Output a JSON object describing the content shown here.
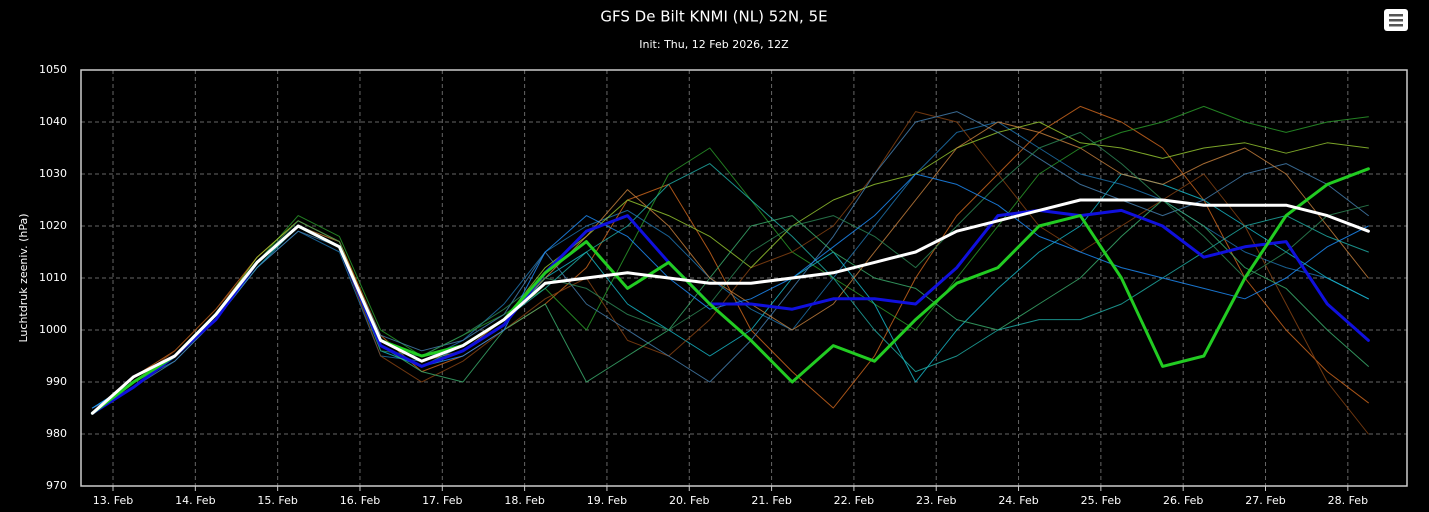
{
  "chart_data": {
    "type": "line",
    "title": "GFS De Bilt KNMI (NL) 52N, 5E",
    "subtitle": "Init: Thu, 12 Feb 2026, 12Z",
    "y_label": "Luchtdruk zeeniv. (hPa)",
    "grid": true,
    "ylim": [
      970,
      1050
    ],
    "yticks": [
      970,
      980,
      990,
      1000,
      1010,
      1020,
      1030,
      1040,
      1050
    ],
    "xlim": [
      "2026-02-12T14:40",
      "2026-02-28T17:15"
    ],
    "xticks": [
      {
        "value": "2026-02-13T00:00",
        "label": "13. Feb"
      },
      {
        "value": "2026-02-14T00:00",
        "label": "14. Feb"
      },
      {
        "value": "2026-02-15T00:00",
        "label": "15. Feb"
      },
      {
        "value": "2026-02-16T00:00",
        "label": "16. Feb"
      },
      {
        "value": "2026-02-17T00:00",
        "label": "17. Feb"
      },
      {
        "value": "2026-02-18T00:00",
        "label": "18. Feb"
      },
      {
        "value": "2026-02-19T00:00",
        "label": "19. Feb"
      },
      {
        "value": "2026-02-20T00:00",
        "label": "20. Feb"
      },
      {
        "value": "2026-02-21T00:00",
        "label": "21. Feb"
      },
      {
        "value": "2026-02-22T00:00",
        "label": "22. Feb"
      },
      {
        "value": "2026-02-23T00:00",
        "label": "23. Feb"
      },
      {
        "value": "2026-02-24T00:00",
        "label": "24. Feb"
      },
      {
        "value": "2026-02-25T00:00",
        "label": "25. Feb"
      },
      {
        "value": "2026-02-26T00:00",
        "label": "26. Feb"
      },
      {
        "value": "2026-02-27T00:00",
        "label": "27. Feb"
      },
      {
        "value": "2026-02-28T00:00",
        "label": "28. Feb"
      }
    ],
    "x": [
      "2026-02-12T18:00",
      "2026-02-13T06:00",
      "2026-02-13T18:00",
      "2026-02-14T06:00",
      "2026-02-14T18:00",
      "2026-02-15T06:00",
      "2026-02-15T18:00",
      "2026-02-16T06:00",
      "2026-02-16T18:00",
      "2026-02-17T06:00",
      "2026-02-17T18:00",
      "2026-02-18T06:00",
      "2026-02-18T18:00",
      "2026-02-19T06:00",
      "2026-02-19T18:00",
      "2026-02-20T06:00",
      "2026-02-20T18:00",
      "2026-02-21T06:00",
      "2026-02-21T18:00",
      "2026-02-22T06:00",
      "2026-02-22T18:00",
      "2026-02-23T06:00",
      "2026-02-23T18:00",
      "2026-02-24T06:00",
      "2026-02-24T18:00",
      "2026-02-25T06:00",
      "2026-02-25T18:00",
      "2026-02-26T06:00",
      "2026-02-26T18:00",
      "2026-02-27T06:00",
      "2026-02-27T18:00",
      "2026-02-28T06:00"
    ],
    "series": [
      {
        "color": "#1f77b4",
        "values": [
          985,
          990,
          994,
          1002,
          1012,
          1019,
          1015,
          995,
          994,
          998,
          1005,
          1015,
          1020,
          1023,
          1018,
          1010,
          1004,
          1000,
          1010,
          1020,
          1030,
          1038,
          1040,
          1035,
          1030,
          1028,
          1025,
          1020,
          1015,
          1012,
          1010,
          1006
        ]
      },
      {
        "color": "#d2691e",
        "values": [
          984,
          991,
          996,
          1004,
          1014,
          1021,
          1017,
          999,
          992,
          995,
          1000,
          1005,
          1012,
          1025,
          1028,
          1015,
          1000,
          992,
          985,
          995,
          1010,
          1022,
          1030,
          1038,
          1043,
          1040,
          1035,
          1025,
          1010,
          1000,
          992,
          986
        ]
      },
      {
        "color": "#2ca02c",
        "values": [
          984,
          989,
          995,
          1003,
          1013,
          1022,
          1018,
          1000,
          995,
          999,
          1003,
          1008,
          1000,
          1015,
          1030,
          1035,
          1025,
          1015,
          1010,
          1005,
          1000,
          1010,
          1020,
          1030,
          1035,
          1038,
          1040,
          1043,
          1040,
          1038,
          1040,
          1041
        ]
      },
      {
        "color": "#17becf",
        "values": [
          985,
          990,
          995,
          1002,
          1012,
          1020,
          1016,
          996,
          993,
          996,
          1001,
          1010,
          1015,
          1005,
          1000,
          995,
          1000,
          1010,
          1015,
          1005,
          990,
          1000,
          1008,
          1015,
          1020,
          1030,
          1028,
          1025,
          1020,
          1015,
          1010,
          1006
        ]
      },
      {
        "color": "#8b4513",
        "values": [
          984,
          990,
          996,
          1004,
          1013,
          1020,
          1016,
          995,
          990,
          994,
          1000,
          1006,
          1010,
          998,
          995,
          1002,
          1012,
          1015,
          1020,
          1030,
          1042,
          1040,
          1030,
          1020,
          1015,
          1020,
          1025,
          1030,
          1020,
          1005,
          990,
          980
        ]
      },
      {
        "color": "#9acd32",
        "values": [
          984,
          991,
          995,
          1003,
          1014,
          1021,
          1017,
          998,
          994,
          997,
          1002,
          1012,
          1018,
          1025,
          1022,
          1018,
          1012,
          1020,
          1025,
          1028,
          1030,
          1035,
          1038,
          1040,
          1036,
          1035,
          1033,
          1035,
          1036,
          1034,
          1036,
          1035
        ]
      },
      {
        "color": "#4682b4",
        "values": [
          985,
          989,
          994,
          1002,
          1012,
          1019,
          1016,
          999,
          996,
          998,
          1003,
          1015,
          1005,
          1000,
          995,
          990,
          998,
          1008,
          1018,
          1030,
          1040,
          1042,
          1038,
          1033,
          1028,
          1025,
          1022,
          1025,
          1030,
          1032,
          1028,
          1022
        ]
      },
      {
        "color": "#3cb371",
        "values": [
          984,
          990,
          995,
          1003,
          1013,
          1020,
          1016,
          997,
          992,
          990,
          1000,
          1005,
          990,
          995,
          1000,
          1010,
          1020,
          1022,
          1015,
          1010,
          1008,
          1002,
          1000,
          1005,
          1010,
          1018,
          1025,
          1020,
          1012,
          1008,
          1000,
          993
        ]
      },
      {
        "color": "#cd853f",
        "values": [
          984,
          990,
          995,
          1003,
          1013,
          1020,
          1017,
          998,
          994,
          996,
          1002,
          1010,
          1018,
          1027,
          1020,
          1010,
          1005,
          1000,
          1005,
          1015,
          1025,
          1035,
          1040,
          1038,
          1035,
          1030,
          1028,
          1032,
          1035,
          1030,
          1020,
          1010
        ]
      },
      {
        "color": "#20b2aa",
        "values": [
          984,
          990,
          995,
          1002,
          1013,
          1020,
          1016,
          997,
          993,
          997,
          1002,
          1008,
          1015,
          1020,
          1028,
          1032,
          1025,
          1018,
          1010,
          1000,
          992,
          995,
          1000,
          1002,
          1002,
          1005,
          1010,
          1015,
          1020,
          1022,
          1018,
          1015
        ]
      },
      {
        "color": "#2e8b57",
        "values": [
          984,
          990,
          995,
          1003,
          1013,
          1021,
          1017,
          996,
          995,
          999,
          1004,
          1010,
          1008,
          1003,
          1000,
          1005,
          1015,
          1020,
          1022,
          1018,
          1012,
          1020,
          1028,
          1035,
          1038,
          1032,
          1025,
          1018,
          1010,
          1015,
          1022,
          1024
        ]
      },
      {
        "color": "#1e90ff",
        "values": [
          985,
          990,
          995,
          1003,
          1013,
          1020,
          1016,
          997,
          993,
          995,
          1000,
          1015,
          1022,
          1018,
          1010,
          1004,
          1006,
          1010,
          1016,
          1022,
          1030,
          1028,
          1024,
          1018,
          1015,
          1012,
          1010,
          1008,
          1006,
          1010,
          1016,
          1020
        ]
      },
      {
        "color": "#1010dd",
        "values": [
          984,
          989,
          995,
          1002,
          1013,
          1020,
          1016,
          997,
          993,
          996,
          1001,
          1011,
          1019,
          1022,
          1013,
          1005,
          1005,
          1004,
          1006,
          1006,
          1005,
          1012,
          1022,
          1023,
          1022,
          1023,
          1020,
          1014,
          1016,
          1017,
          1005,
          998
        ]
      },
      {
        "color": "#22cc22",
        "values": [
          984,
          990,
          995,
          1003,
          1013,
          1020,
          1016,
          998,
          995,
          997,
          1002,
          1011,
          1017,
          1008,
          1013,
          1005,
          998,
          990,
          997,
          994,
          1002,
          1009,
          1012,
          1020,
          1022,
          1010,
          993,
          995,
          1010,
          1022,
          1028,
          1031
        ]
      },
      {
        "color": "#ffffff",
        "values": [
          984,
          991,
          995,
          1003,
          1013,
          1020,
          1016,
          998,
          994,
          997,
          1002,
          1009,
          1010,
          1011,
          1010,
          1009,
          1009,
          1010,
          1011,
          1013,
          1015,
          1019,
          1021,
          1023,
          1025,
          1025,
          1025,
          1024,
          1024,
          1024,
          1022,
          1019
        ]
      }
    ]
  }
}
